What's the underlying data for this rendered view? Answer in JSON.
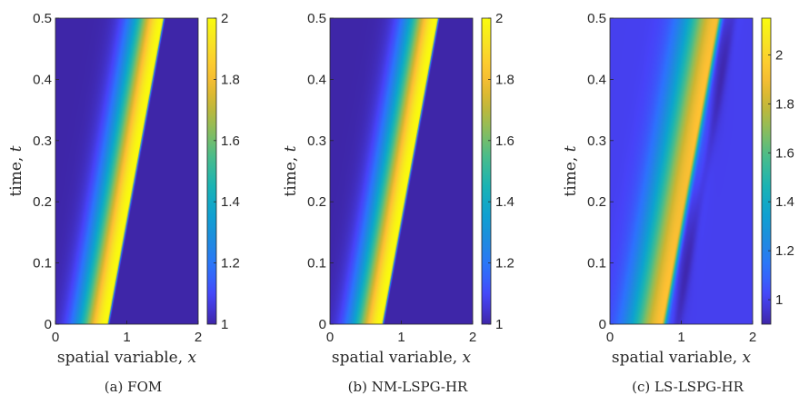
{
  "figure": {
    "colors": {
      "parula": [
        "#3E26A8",
        "#4743F8",
        "#2D72FD",
        "#1E8BDE",
        "#0DA2D0",
        "#1BB4B2",
        "#48BC8C",
        "#8DBD5A",
        "#CFB631",
        "#FEC033",
        "#F8DF27",
        "#F9FB0E"
      ],
      "tick": "#262626"
    }
  },
  "chart_data": [
    {
      "type": "heatmap",
      "caption": "(a)  FOM",
      "xlabel": "spatial variable, ",
      "xvar": "x",
      "ylabel": "time, ",
      "yvar": "t",
      "xlim": [
        0,
        2
      ],
      "ylim": [
        0,
        0.5
      ],
      "xticks": [
        "0",
        "1",
        "2"
      ],
      "yticks": [
        "0",
        "0.1",
        "0.2",
        "0.3",
        "0.4",
        "0.5"
      ],
      "colorbar": {
        "range": [
          1,
          2
        ],
        "ticks": [
          "1",
          "1.2",
          "1.4",
          "1.6",
          "1.8",
          "2"
        ]
      },
      "field": {
        "baseline": 1.0,
        "peak": 2.0,
        "front_x_t0": 0.72,
        "front_speed": 1.56,
        "rear_width": 0.45,
        "front_width": 0.02,
        "artifacts": false
      }
    },
    {
      "type": "heatmap",
      "caption": "(b)  NM-LSPG-HR",
      "xlabel": "spatial variable, ",
      "xvar": "x",
      "ylabel": "time, ",
      "yvar": "t",
      "xlim": [
        0,
        2
      ],
      "ylim": [
        0,
        0.5
      ],
      "xticks": [
        "0",
        "1",
        "2"
      ],
      "yticks": [
        "0",
        "0.1",
        "0.2",
        "0.3",
        "0.4",
        "0.5"
      ],
      "colorbar": {
        "range": [
          1,
          2
        ],
        "ticks": [
          "1",
          "1.2",
          "1.4",
          "1.6",
          "1.8",
          "2"
        ]
      },
      "field": {
        "baseline": 1.0,
        "peak": 2.0,
        "front_x_t0": 0.72,
        "front_speed": 1.56,
        "rear_width": 0.45,
        "front_width": 0.02,
        "artifacts": false
      }
    },
    {
      "type": "heatmap",
      "caption": "(c)  LS-LSPG-HR",
      "xlabel": "spatial variable, ",
      "xvar": "x",
      "ylabel": "time, ",
      "yvar": "t",
      "xlim": [
        0,
        2
      ],
      "ylim": [
        0,
        0.5
      ],
      "xticks": [
        "0",
        "1",
        "2"
      ],
      "yticks": [
        "0",
        "0.1",
        "0.2",
        "0.3",
        "0.4",
        "0.5"
      ],
      "colorbar": {
        "range": [
          0.9,
          2.15
        ],
        "ticks": [
          "1",
          "1.2",
          "1.4",
          "1.6",
          "1.8",
          "2"
        ]
      },
      "field": {
        "baseline": 1.0,
        "peak": 1.92,
        "front_x_t0": 0.72,
        "front_speed": 1.56,
        "rear_width": 0.5,
        "front_width": 0.06,
        "artifacts": true
      }
    }
  ]
}
